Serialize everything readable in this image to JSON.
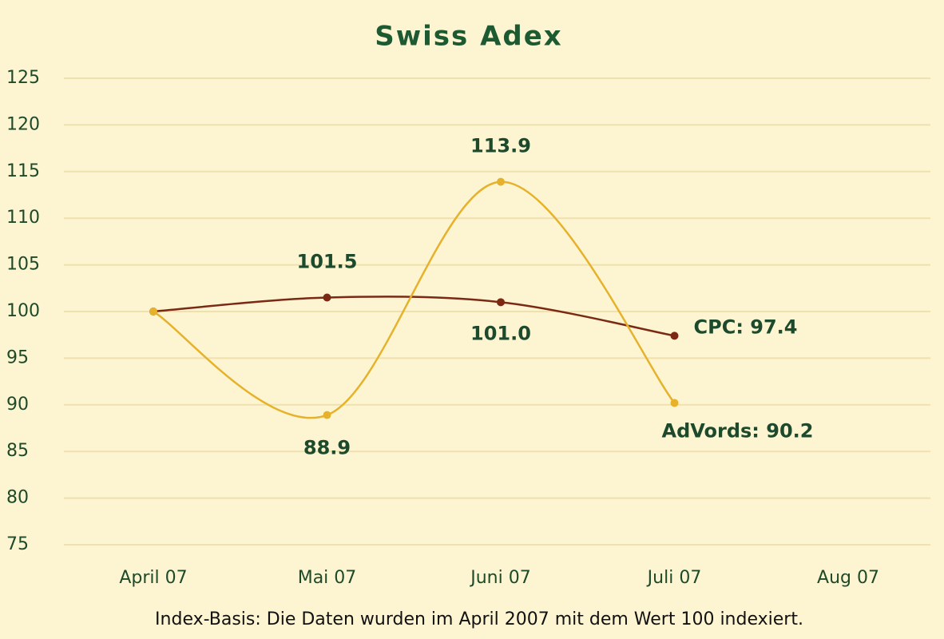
{
  "chart_data": {
    "type": "line",
    "title": "Swiss Adex",
    "categories": [
      "April 07",
      "Mai 07",
      "Juni 07",
      "Juli 07",
      "Aug 07"
    ],
    "series": [
      {
        "color": "#7a2a14",
        "values": [
          100,
          101.5,
          101.0,
          97.4,
          null
        ],
        "value_labels": [
          null,
          "101.5",
          "101.0",
          "CPC: 97.4",
          null
        ]
      },
      {
        "color": "#e6b22c",
        "values": [
          100,
          88.9,
          113.9,
          90.2,
          null
        ],
        "value_labels": [
          null,
          "88.9",
          "113.9",
          "AdVords: 90.2",
          null
        ]
      }
    ],
    "ylim": [
      75,
      125
    ],
    "yticks": [
      75,
      80,
      85,
      90,
      95,
      100,
      105,
      110,
      115,
      120,
      125
    ],
    "grid": true,
    "note": "Index-Basis: Die Daten wurden im April 2007 mit dem Wert 100 indexiert."
  }
}
